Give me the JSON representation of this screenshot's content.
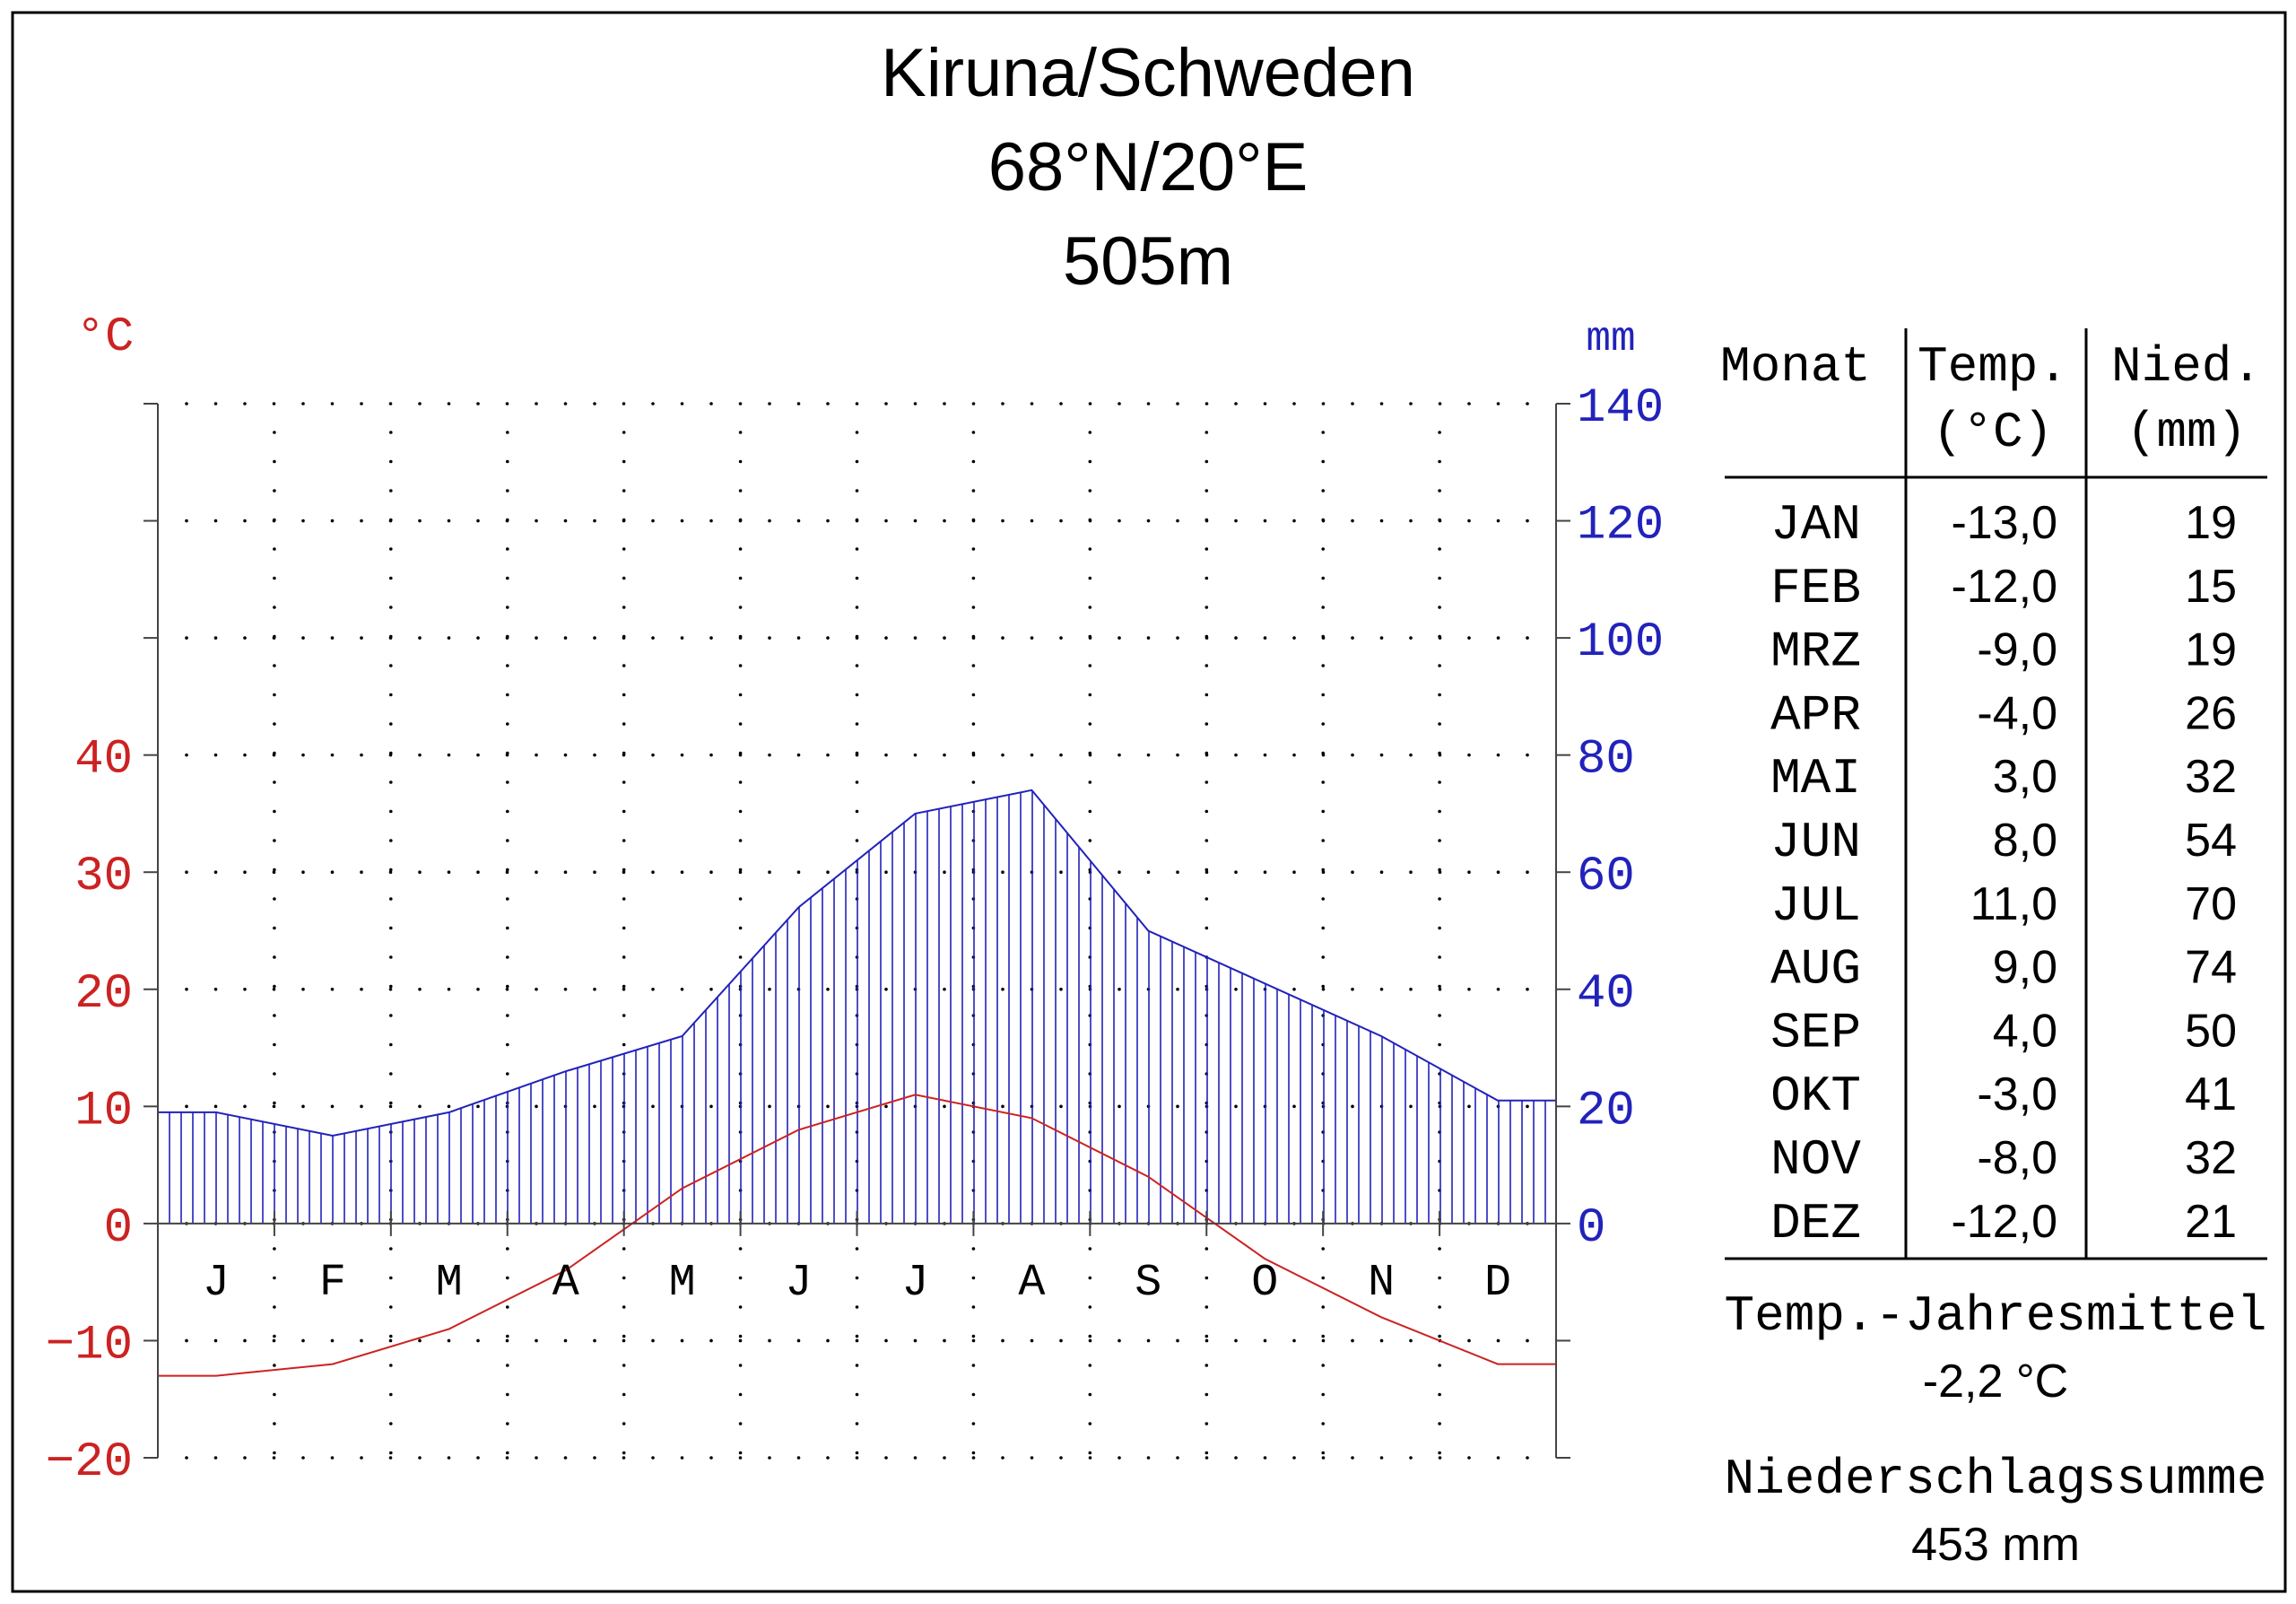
{
  "chart_data": {
    "type": "climate-diagram",
    "title": "Kiruna/Schweden",
    "subtitle": "68°N/20°E",
    "elevation": "505m",
    "temp_axis": {
      "unit": "°C",
      "ticks": [
        "40",
        "30",
        "20",
        "10",
        "0",
        "−10",
        "−20"
      ],
      "range": [
        -20,
        70
      ]
    },
    "precip_axis": {
      "unit": "mm",
      "ticks": [
        "140",
        "120",
        "100",
        "80",
        "60",
        "40",
        "20",
        "0"
      ],
      "range": [
        -40,
        140
      ]
    },
    "months": [
      "J",
      "F",
      "M",
      "A",
      "M",
      "J",
      "J",
      "A",
      "S",
      "O",
      "N",
      "D"
    ],
    "temperature": [
      -13.0,
      -12.0,
      -9.0,
      -4.0,
      3.0,
      8.0,
      11.0,
      9.0,
      4.0,
      -3.0,
      -8.0,
      -12.0
    ],
    "precipitation": [
      19,
      15,
      19,
      26,
      32,
      54,
      70,
      74,
      50,
      41,
      32,
      21
    ],
    "colors": {
      "temperature": "#cc2222",
      "precipitation": "#2222bb",
      "grid": "#000000"
    },
    "grid": "dotted",
    "table": {
      "headers": {
        "month": "Monat",
        "temp": "Temp.",
        "temp_unit": "(°C)",
        "precip": "Nied.",
        "precip_unit": "(mm)"
      },
      "rows": [
        {
          "month": "JAN",
          "temp": "-13,0",
          "precip": "19"
        },
        {
          "month": "FEB",
          "temp": "-12,0",
          "precip": "15"
        },
        {
          "month": "MRZ",
          "temp": "-9,0",
          "precip": "19"
        },
        {
          "month": "APR",
          "temp": "-4,0",
          "precip": "26"
        },
        {
          "month": "MAI",
          "temp": "3,0",
          "precip": "32"
        },
        {
          "month": "JUN",
          "temp": "8,0",
          "precip": "54"
        },
        {
          "month": "JUL",
          "temp": "11,0",
          "precip": "70"
        },
        {
          "month": "AUG",
          "temp": "9,0",
          "precip": "74"
        },
        {
          "month": "SEP",
          "temp": "4,0",
          "precip": "50"
        },
        {
          "month": "OKT",
          "temp": "-3,0",
          "precip": "41"
        },
        {
          "month": "NOV",
          "temp": "-8,0",
          "precip": "32"
        },
        {
          "month": "DEZ",
          "temp": "-12,0",
          "precip": "21"
        }
      ]
    },
    "summary": {
      "mean_label": "Temp.-Jahresmittel",
      "mean_value": "-2,2 °C",
      "total_label": "Niederschlagssumme",
      "total_value": "453 mm"
    }
  }
}
